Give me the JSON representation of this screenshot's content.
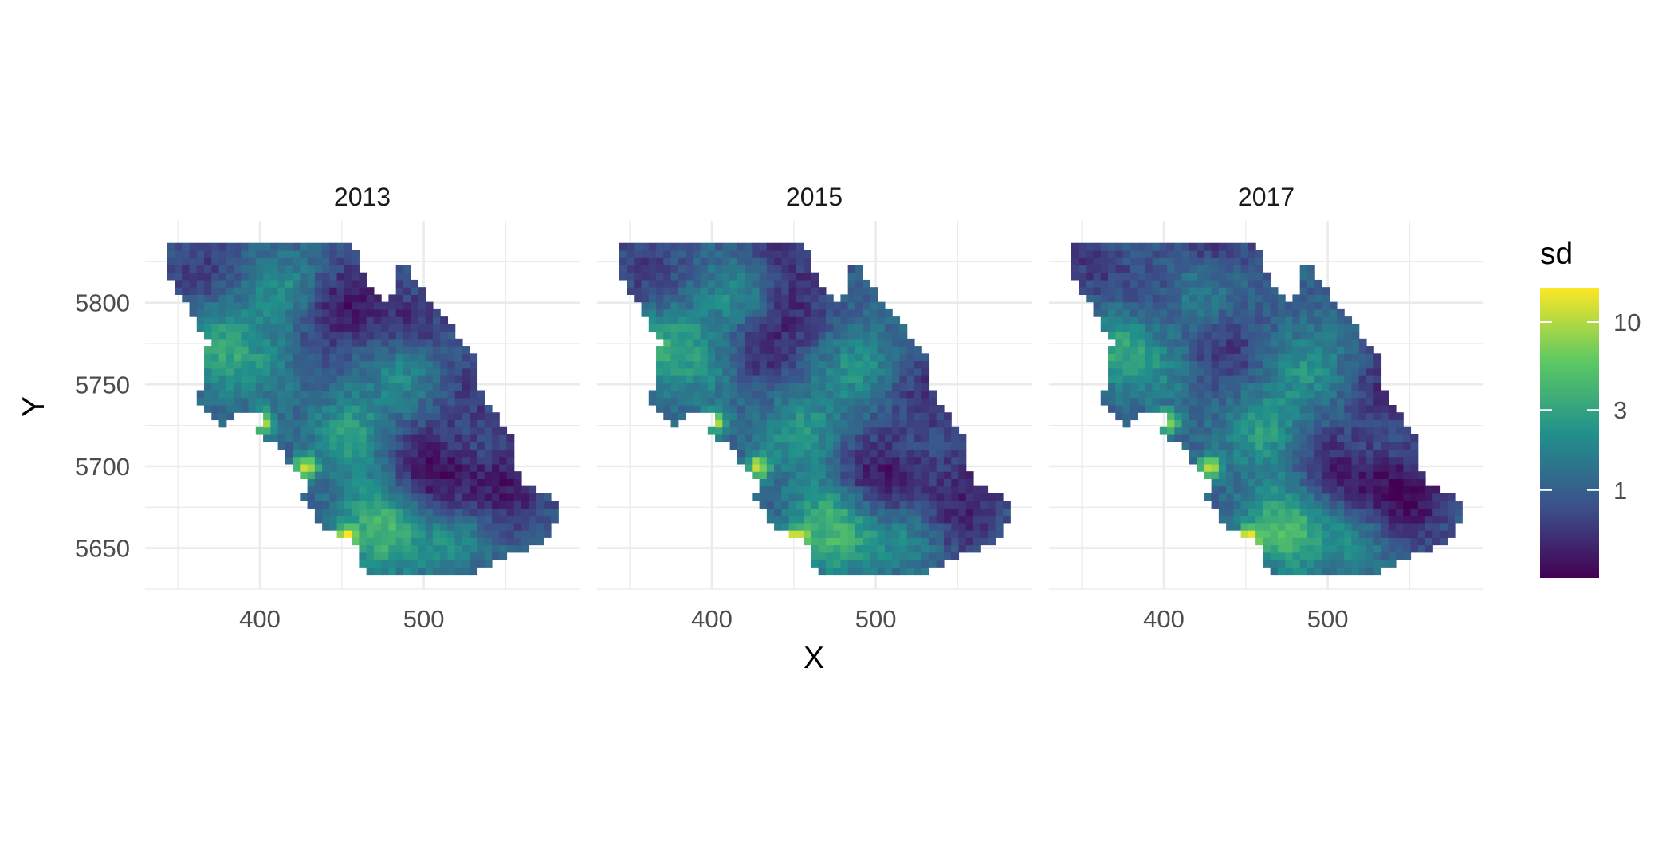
{
  "chart_data": {
    "type": "heatmap",
    "title": "",
    "xlabel": "X",
    "ylabel": "Y",
    "facets": [
      "2013",
      "2015",
      "2017"
    ],
    "xlim": [
      330,
      595
    ],
    "ylim": [
      5625,
      5850
    ],
    "x_ticks": [
      400,
      500
    ],
    "x_tick_labels": [
      "400",
      "500"
    ],
    "y_ticks": [
      5650,
      5700,
      5750,
      5800
    ],
    "y_tick_labels": [
      "5650",
      "5700",
      "5750",
      "5800"
    ],
    "grid": true,
    "fill": {
      "name": "sd",
      "scale": "log",
      "palette": "viridis",
      "colors": [
        "#440154",
        "#3b528b",
        "#21918c",
        "#5ec962",
        "#fde725"
      ],
      "range": [
        0.3,
        16
      ],
      "breaks": [
        1,
        3,
        10
      ],
      "break_labels": [
        "1",
        "3",
        "10"
      ]
    },
    "region_outline_xy": [
      [
        342,
        5838
      ],
      [
        398,
        5838
      ],
      [
        400,
        5836
      ],
      [
        455,
        5836
      ],
      [
        458,
        5832
      ],
      [
        462,
        5822
      ],
      [
        470,
        5806
      ],
      [
        478,
        5800
      ],
      [
        484,
        5810
      ],
      [
        480,
        5820
      ],
      [
        488,
        5825
      ],
      [
        492,
        5818
      ],
      [
        500,
        5806
      ],
      [
        512,
        5790
      ],
      [
        525,
        5776
      ],
      [
        534,
        5762
      ],
      [
        534,
        5750
      ],
      [
        540,
        5736
      ],
      [
        555,
        5718
      ],
      [
        558,
        5690
      ],
      [
        572,
        5683
      ],
      [
        581,
        5680
      ],
      [
        581,
        5665
      ],
      [
        575,
        5658
      ],
      [
        572,
        5652
      ],
      [
        558,
        5648
      ],
      [
        546,
        5643
      ],
      [
        534,
        5636
      ],
      [
        464,
        5636
      ],
      [
        458,
        5644
      ],
      [
        460,
        5652
      ],
      [
        450,
        5656
      ],
      [
        440,
        5662
      ],
      [
        432,
        5672
      ],
      [
        426,
        5682
      ],
      [
        428,
        5690
      ],
      [
        420,
        5700
      ],
      [
        416,
        5706
      ],
      [
        410,
        5714
      ],
      [
        398,
        5718
      ],
      [
        402,
        5730
      ],
      [
        392,
        5735
      ],
      [
        386,
        5734
      ],
      [
        382,
        5728
      ],
      [
        378,
        5722
      ],
      [
        372,
        5730
      ],
      [
        362,
        5740
      ],
      [
        366,
        5752
      ],
      [
        364,
        5770
      ],
      [
        370,
        5776
      ],
      [
        360,
        5790
      ],
      [
        348,
        5810
      ],
      [
        342,
        5822
      ]
    ],
    "hotspots": {
      "2013": [
        [
          372,
          5774,
          3.0
        ],
        [
          418,
          5805,
          2.5
        ],
        [
          492,
          5784,
          0.45
        ],
        [
          488,
          5760,
          2.4
        ],
        [
          455,
          5720,
          2.8
        ],
        [
          498,
          5705,
          0.5
        ],
        [
          512,
          5684,
          0.45
        ],
        [
          470,
          5672,
          2.2
        ],
        [
          546,
          5680,
          0.5
        ],
        [
          520,
          5660,
          2.5
        ],
        [
          440,
          5790,
          0.5
        ],
        [
          400,
          5760,
          1.8
        ],
        [
          402,
          5727,
          10
        ],
        [
          428,
          5700,
          12
        ],
        [
          452,
          5656,
          11
        ],
        [
          560,
          5700,
          0.6
        ],
        [
          360,
          5818,
          0.6
        ],
        [
          455,
          5806,
          0.55
        ],
        [
          530,
          5745,
          0.6
        ],
        [
          478,
          5655,
          2.6
        ]
      ],
      "2015": [
        [
          372,
          5774,
          3.0
        ],
        [
          418,
          5805,
          2.5
        ],
        [
          428,
          5772,
          0.45
        ],
        [
          450,
          5800,
          0.5
        ],
        [
          488,
          5760,
          2.3
        ],
        [
          455,
          5720,
          2.6
        ],
        [
          495,
          5700,
          0.5
        ],
        [
          512,
          5684,
          0.5
        ],
        [
          470,
          5672,
          2.2
        ],
        [
          550,
          5668,
          0.45
        ],
        [
          520,
          5660,
          2.4
        ],
        [
          400,
          5760,
          1.8
        ],
        [
          402,
          5727,
          10
        ],
        [
          428,
          5700,
          12
        ],
        [
          452,
          5656,
          11
        ],
        [
          560,
          5700,
          0.6
        ],
        [
          360,
          5818,
          0.6
        ],
        [
          438,
          5838,
          0.5
        ],
        [
          530,
          5745,
          0.55
        ],
        [
          478,
          5655,
          2.6
        ]
      ],
      "2017": [
        [
          372,
          5774,
          3.0
        ],
        [
          418,
          5805,
          2.5
        ],
        [
          436,
          5770,
          0.5
        ],
        [
          400,
          5800,
          0.5
        ],
        [
          488,
          5760,
          2.3
        ],
        [
          460,
          5722,
          2.7
        ],
        [
          500,
          5702,
          0.5
        ],
        [
          526,
          5680,
          0.45
        ],
        [
          470,
          5672,
          2.2
        ],
        [
          548,
          5672,
          0.5
        ],
        [
          520,
          5660,
          2.5
        ],
        [
          400,
          5760,
          1.8
        ],
        [
          402,
          5727,
          10
        ],
        [
          428,
          5700,
          12
        ],
        [
          452,
          5656,
          11
        ],
        [
          556,
          5694,
          0.6
        ],
        [
          356,
          5824,
          0.6
        ],
        [
          430,
          5838,
          0.5
        ],
        [
          538,
          5750,
          0.5
        ],
        [
          478,
          5655,
          2.6
        ]
      ]
    }
  }
}
